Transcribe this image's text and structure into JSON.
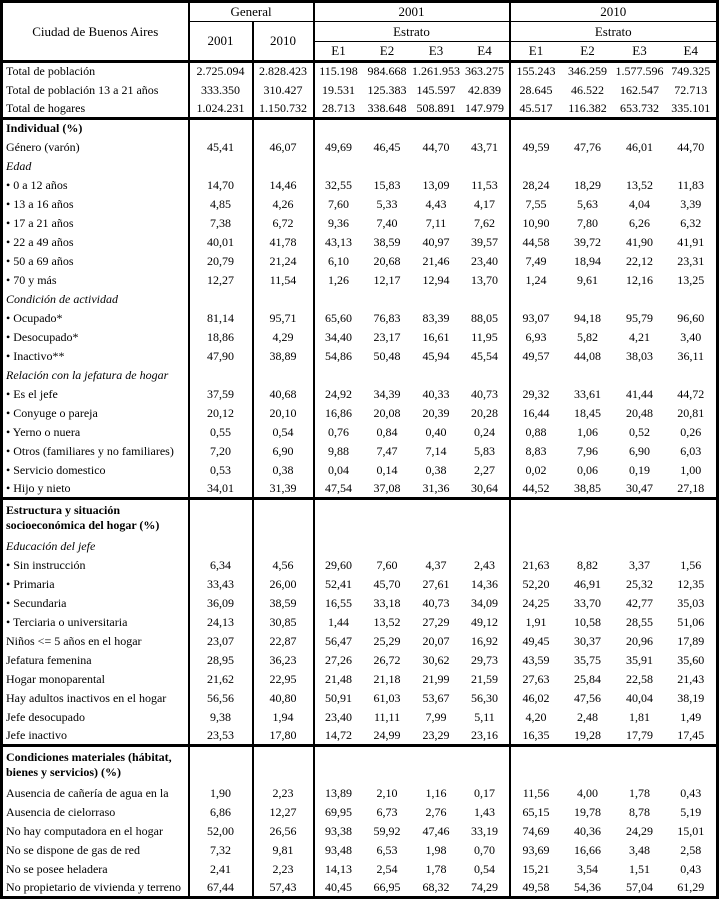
{
  "header": {
    "corner_label": "Ciudad de Buenos Aires",
    "groups": [
      {
        "title": "General",
        "columns": [
          "2001",
          "2010"
        ]
      },
      {
        "title": "2001",
        "subtitle": "Estrato",
        "columns": [
          "E1",
          "E2",
          "E3",
          "E4"
        ]
      },
      {
        "title": "2010",
        "subtitle": "Estrato",
        "columns": [
          "E1",
          "E2",
          "E3",
          "E4"
        ]
      }
    ]
  },
  "table": {
    "sections": [
      {
        "name": "totales",
        "rows": [
          {
            "label": "Total de población",
            "style": "normal",
            "values": [
              "2.725.094",
              "2.828.423",
              "115.198",
              "984.668",
              "1.261.953",
              "363.275",
              "155.243",
              "346.259",
              "1.577.596",
              "749.325"
            ]
          },
          {
            "label": "Total de población 13 a 21 años",
            "style": "normal",
            "values": [
              "333.350",
              "310.427",
              "19.531",
              "125.383",
              "145.597",
              "42.839",
              "28.645",
              "46.522",
              "162.547",
              "72.713"
            ]
          },
          {
            "label": "Total de hogares",
            "style": "normal",
            "values": [
              "1.024.231",
              "1.150.732",
              "28.713",
              "338.648",
              "508.891",
              "147.979",
              "45.517",
              "116.382",
              "653.732",
              "335.101"
            ]
          }
        ]
      },
      {
        "name": "individual",
        "rows": [
          {
            "label": "Individual (%)",
            "style": "bold",
            "values": []
          },
          {
            "label": "Género (varón)",
            "style": "normal",
            "values": [
              "45,41",
              "46,07",
              "49,69",
              "46,45",
              "44,70",
              "43,71",
              "49,59",
              "47,76",
              "46,01",
              "44,70"
            ]
          },
          {
            "label": "Edad",
            "style": "italic",
            "values": []
          },
          {
            "label": "• 0 a 12 años",
            "style": "normal",
            "values": [
              "14,70",
              "14,46",
              "32,55",
              "15,83",
              "13,09",
              "11,53",
              "28,24",
              "18,29",
              "13,52",
              "11,83"
            ]
          },
          {
            "label": "• 13 a 16 años",
            "style": "normal",
            "values": [
              "4,85",
              "4,26",
              "7,60",
              "5,33",
              "4,43",
              "4,17",
              "7,55",
              "5,63",
              "4,04",
              "3,39"
            ]
          },
          {
            "label": "• 17 a 21 años",
            "style": "normal",
            "values": [
              "7,38",
              "6,72",
              "9,36",
              "7,40",
              "7,11",
              "7,62",
              "10,90",
              "7,80",
              "6,26",
              "6,32"
            ]
          },
          {
            "label": "• 22 a 49 años",
            "style": "normal",
            "values": [
              "40,01",
              "41,78",
              "43,13",
              "38,59",
              "40,97",
              "39,57",
              "44,58",
              "39,72",
              "41,90",
              "41,91"
            ]
          },
          {
            "label": "• 50 a 69 años",
            "style": "normal",
            "values": [
              "20,79",
              "21,24",
              "6,10",
              "20,68",
              "21,46",
              "23,40",
              "7,49",
              "18,94",
              "22,12",
              "23,31"
            ]
          },
          {
            "label": "• 70 y más",
            "style": "normal",
            "values": [
              "12,27",
              "11,54",
              "1,26",
              "12,17",
              "12,94",
              "13,70",
              "1,24",
              "9,61",
              "12,16",
              "13,25"
            ]
          },
          {
            "label": "Condición de actividad",
            "style": "italic",
            "values": []
          },
          {
            "label": "• Ocupado*",
            "style": "normal",
            "values": [
              "81,14",
              "95,71",
              "65,60",
              "76,83",
              "83,39",
              "88,05",
              "93,07",
              "94,18",
              "95,79",
              "96,60"
            ]
          },
          {
            "label": "• Desocupado*",
            "style": "normal",
            "values": [
              "18,86",
              "4,29",
              "34,40",
              "23,17",
              "16,61",
              "11,95",
              "6,93",
              "5,82",
              "4,21",
              "3,40"
            ]
          },
          {
            "label": "• Inactivo**",
            "style": "normal",
            "values": [
              "47,90",
              "38,89",
              "54,86",
              "50,48",
              "45,94",
              "45,54",
              "49,57",
              "44,08",
              "38,03",
              "36,11"
            ]
          },
          {
            "label": "Relación con la jefatura de hogar",
            "style": "italic",
            "values": []
          },
          {
            "label": "• Es el jefe",
            "style": "normal",
            "values": [
              "37,59",
              "40,68",
              "24,92",
              "34,39",
              "40,33",
              "40,73",
              "29,32",
              "33,61",
              "41,44",
              "44,72"
            ]
          },
          {
            "label": "• Conyuge o pareja",
            "style": "normal",
            "values": [
              "20,12",
              "20,10",
              "16,86",
              "20,08",
              "20,39",
              "20,28",
              "16,44",
              "18,45",
              "20,48",
              "20,81"
            ]
          },
          {
            "label": "• Yerno o nuera",
            "style": "normal",
            "values": [
              "0,55",
              "0,54",
              "0,76",
              "0,84",
              "0,40",
              "0,24",
              "0,88",
              "1,06",
              "0,52",
              "0,26"
            ]
          },
          {
            "label": "• Otros (familiares y no familiares)",
            "style": "normal",
            "values": [
              "7,20",
              "6,90",
              "9,88",
              "7,47",
              "7,14",
              "5,83",
              "8,83",
              "7,96",
              "6,90",
              "6,03"
            ]
          },
          {
            "label": "• Servicio domestico",
            "style": "normal",
            "values": [
              "0,53",
              "0,38",
              "0,04",
              "0,14",
              "0,38",
              "2,27",
              "0,02",
              "0,06",
              "0,19",
              "1,00"
            ]
          },
          {
            "label": "• Hijo y nieto",
            "style": "normal",
            "values": [
              "34,01",
              "31,39",
              "47,54",
              "37,08",
              "31,36",
              "30,64",
              "44,52",
              "38,85",
              "30,47",
              "27,18"
            ]
          }
        ]
      },
      {
        "name": "estructura",
        "rows": [
          {
            "label": "Estructura y situación\nsocioeconómica del hogar (%)",
            "style": "bold",
            "two_line": true,
            "values": []
          },
          {
            "label": "Educación del jefe",
            "style": "italic",
            "values": []
          },
          {
            "label": "• Sin instrucción",
            "style": "normal",
            "values": [
              "6,34",
              "4,56",
              "29,60",
              "7,60",
              "4,37",
              "2,43",
              "21,63",
              "8,82",
              "3,37",
              "1,56"
            ]
          },
          {
            "label": "• Primaria",
            "style": "normal",
            "values": [
              "33,43",
              "26,00",
              "52,41",
              "45,70",
              "27,61",
              "14,36",
              "52,20",
              "46,91",
              "25,32",
              "12,35"
            ]
          },
          {
            "label": "• Secundaria",
            "style": "normal",
            "values": [
              "36,09",
              "38,59",
              "16,55",
              "33,18",
              "40,73",
              "34,09",
              "24,25",
              "33,70",
              "42,77",
              "35,03"
            ]
          },
          {
            "label": "• Terciaria o universitaria",
            "style": "normal",
            "values": [
              "24,13",
              "30,85",
              "1,44",
              "13,52",
              "27,29",
              "49,12",
              "1,91",
              "10,58",
              "28,55",
              "51,06"
            ]
          },
          {
            "label": "Niños <= 5 años en el hogar",
            "style": "normal",
            "values": [
              "23,07",
              "22,87",
              "56,47",
              "25,29",
              "20,07",
              "16,92",
              "49,45",
              "30,37",
              "20,96",
              "17,89"
            ]
          },
          {
            "label": "Jefatura femenina",
            "style": "normal",
            "values": [
              "28,95",
              "36,23",
              "27,26",
              "26,72",
              "30,62",
              "29,73",
              "43,59",
              "35,75",
              "35,91",
              "35,60"
            ]
          },
          {
            "label": "Hogar monoparental",
            "style": "normal",
            "values": [
              "21,62",
              "22,95",
              "21,48",
              "21,18",
              "21,99",
              "21,59",
              "27,63",
              "25,84",
              "22,58",
              "21,43"
            ]
          },
          {
            "label": "Hay adultos inactivos en el hogar",
            "style": "normal",
            "values": [
              "56,56",
              "40,80",
              "50,91",
              "61,03",
              "53,67",
              "56,30",
              "46,02",
              "47,56",
              "40,04",
              "38,19"
            ]
          },
          {
            "label": "Jefe desocupado",
            "style": "normal",
            "values": [
              "9,38",
              "1,94",
              "23,40",
              "11,11",
              "7,99",
              "5,11",
              "4,20",
              "2,48",
              "1,81",
              "1,49"
            ]
          },
          {
            "label": "Jefe inactivo",
            "style": "normal",
            "values": [
              "23,53",
              "17,80",
              "14,72",
              "24,99",
              "23,29",
              "23,16",
              "16,35",
              "19,28",
              "17,79",
              "17,45"
            ]
          }
        ]
      },
      {
        "name": "condiciones",
        "rows": [
          {
            "label": "Condiciones materiales (hábitat,\nbienes y servicios) (%)",
            "style": "bold",
            "two_line": true,
            "values": []
          },
          {
            "label": "Ausencia de cañería de agua en la",
            "style": "normal",
            "values": [
              "1,90",
              "2,23",
              "13,89",
              "2,10",
              "1,16",
              "0,17",
              "11,56",
              "4,00",
              "1,78",
              "0,43"
            ]
          },
          {
            "label": "Ausencia de cielorraso",
            "style": "normal",
            "values": [
              "6,86",
              "12,27",
              "69,95",
              "6,73",
              "2,76",
              "1,43",
              "65,15",
              "19,78",
              "8,78",
              "5,19"
            ]
          },
          {
            "label": "No hay computadora en el hogar",
            "style": "normal",
            "values": [
              "52,00",
              "26,56",
              "93,38",
              "59,92",
              "47,46",
              "33,19",
              "74,69",
              "40,36",
              "24,29",
              "15,01"
            ]
          },
          {
            "label": "No se dispone de gas de red",
            "style": "normal",
            "values": [
              "7,32",
              "9,81",
              "93,48",
              "6,53",
              "1,98",
              "0,70",
              "93,69",
              "16,66",
              "3,48",
              "2,58"
            ]
          },
          {
            "label": "No se posee heladera",
            "style": "normal",
            "values": [
              "2,41",
              "2,23",
              "14,13",
              "2,54",
              "1,78",
              "0,54",
              "15,21",
              "3,54",
              "1,51",
              "0,43"
            ]
          },
          {
            "label": "No propietario de vivienda y terreno",
            "style": "normal",
            "values": [
              "67,44",
              "57,43",
              "40,45",
              "66,95",
              "68,32",
              "74,29",
              "49,58",
              "54,36",
              "57,04",
              "61,29"
            ]
          }
        ]
      }
    ]
  }
}
